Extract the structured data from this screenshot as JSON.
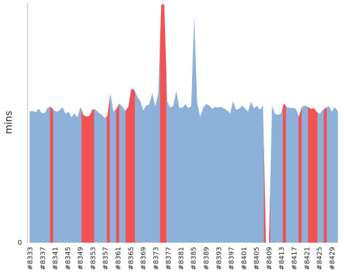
{
  "chart_data": {
    "type": "area",
    "title": "",
    "xlabel": "",
    "ylabel": "mins",
    "y_tick_labels": [
      "0"
    ],
    "ylim": [
      0,
      120
    ],
    "grid": false,
    "legend": "none",
    "colors": {
      "normal": "#8eb1da",
      "highlight": "#f25252",
      "axis": "#b8b8b8"
    },
    "x_tick_labels": [
      "#8333",
      "#8337",
      "#8341",
      "#8345",
      "#8349",
      "#8353",
      "#8357",
      "#8361",
      "#8365",
      "#8369",
      "#8373",
      "#8377",
      "#8381",
      "#8385",
      "#8389",
      "#8393",
      "#8397",
      "#8401",
      "#8405",
      "#8409",
      "#8413",
      "#8417",
      "#8421",
      "#8425",
      "#8429"
    ],
    "x_start": 8333,
    "x_end": 8431,
    "values": [
      65.6,
      65.9,
      65.2,
      67.1,
      64.9,
      64.6,
      67.5,
      68.0,
      66.4,
      65.5,
      66.2,
      67.9,
      64.5,
      65.5,
      62.8,
      64.7,
      62.6,
      67.9,
      63.8,
      63.1,
      63.4,
      66.6,
      66.6,
      65.2,
      64.1,
      62.5,
      63.5,
      74.8,
      65.5,
      66.9,
      69.6,
      68.1,
      65.9,
      67.9,
      77.0,
      76.4,
      73.1,
      70.8,
      66.2,
      68.7,
      69.2,
      74.9,
      68.2,
      74.6,
      119.1,
      119.1,
      70.5,
      67.7,
      68.4,
      76.1,
      67.6,
      67.5,
      69.3,
      67.3,
      68.2,
      113.0,
      69.9,
      63.0,
      67.5,
      69.4,
      68.7,
      66.9,
      67.9,
      67.7,
      67.9,
      67.1,
      66.3,
      64.6,
      70.8,
      66.5,
      67.0,
      68.6,
      67.1,
      65.6,
      70.6,
      67.2,
      68.5,
      66.5,
      68.7,
      0.0,
      0.0,
      68.4,
      64.5,
      63.9,
      64.7,
      69.6,
      67.8,
      67.4,
      67.5,
      66.9,
      63.0,
      68.0,
      68.6,
      68.0,
      66.9,
      67.3,
      65.3,
      64.5,
      66.4,
      67.4,
      68.3,
      65.6,
      67.8,
      65.7
    ],
    "highlighted_ranges": [
      [
        8340,
        8340
      ],
      [
        8350,
        8353
      ],
      [
        8358,
        8358
      ],
      [
        8361,
        8361
      ],
      [
        8364,
        8366
      ],
      [
        8375,
        8376
      ],
      [
        8408,
        8409
      ],
      [
        8414,
        8414
      ],
      [
        8419,
        8419
      ],
      [
        8422,
        8424
      ],
      [
        8427,
        8427
      ],
      [
        8436,
        8436
      ]
    ]
  }
}
